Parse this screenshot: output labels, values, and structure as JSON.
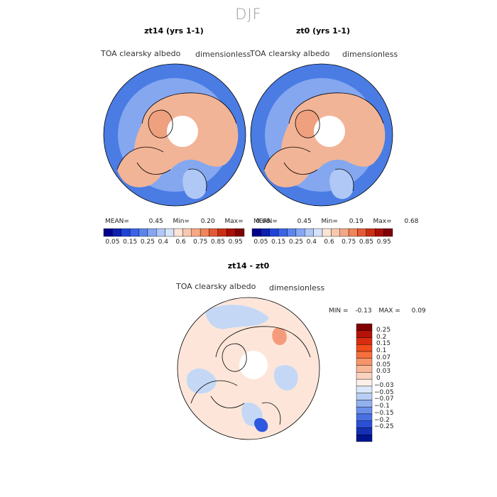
{
  "figure_title": "DJF",
  "panels": {
    "left": {
      "title": "zt14 (yrs 1-1)",
      "variable": "TOA clearsky albedo",
      "units": "dimensionless",
      "mean_label": "MEAN=",
      "mean": "0.45",
      "min_label": "Min=",
      "min": "0.20",
      "max_label": "Max=",
      "max": "0.68"
    },
    "right": {
      "title": "zt0 (yrs 1-1)",
      "variable": "TOA clearsky albedo",
      "units": "dimensionless",
      "mean_label": "MEAN=",
      "mean": "0.45",
      "min_label": "Min=",
      "min": "0.19",
      "max_label": "Max=",
      "max": "0.68"
    },
    "diff": {
      "title": "zt14 - zt0",
      "variable": "TOA clearsky albedo",
      "units": "dimensionless",
      "min_label": "MIN =",
      "min": "-0.13",
      "max_label": "MAX =",
      "max": "0.09"
    }
  },
  "colorbar_horizontal": {
    "colors": [
      "#00008b",
      "#0d1fb0",
      "#1f43d6",
      "#3a63e8",
      "#5d84ee",
      "#85a6f2",
      "#b0c8f6",
      "#d6e3fa",
      "#fbe3d6",
      "#f8c8ae",
      "#f5a884",
      "#f0855c",
      "#e45a35",
      "#cb2f14",
      "#a81006",
      "#800000"
    ],
    "labels": [
      "0.05",
      "0.15",
      "0.25",
      "0.4",
      "0.6",
      "0.75",
      "0.85",
      "0.95"
    ]
  },
  "colorbar_vertical": {
    "colors": [
      "#800000",
      "#b51108",
      "#d92b10",
      "#f04c1c",
      "#f6703e",
      "#f7956a",
      "#f8b797",
      "#fad3bf",
      "#fdf0e8",
      "#dbe6f8",
      "#b8cdf3",
      "#93b1ef",
      "#6c90ea",
      "#4870e4",
      "#2c4fd8",
      "#1530b5",
      "#00148f"
    ],
    "labels": [
      "0.25",
      "0.2",
      "0.15",
      "0.1",
      "0.07",
      "0.05",
      "0.03",
      "0",
      "-0.03",
      "-0.05",
      "-0.07",
      "-0.1",
      "-0.15",
      "-0.2",
      "-0.25"
    ]
  },
  "map_colors": {
    "ocean_outer": "#4a7ce4",
    "ocean_mid": "#85a7f0",
    "ocean_light": "#b0c8f5",
    "land": "#f2b496",
    "land_warm": "#efa07e",
    "pole": "#ffffff",
    "diff_base": "#fde6d9",
    "diff_blue": "#c4d8f6",
    "diff_red": "#f59b7c",
    "diff_deep": "#2f58e0"
  }
}
